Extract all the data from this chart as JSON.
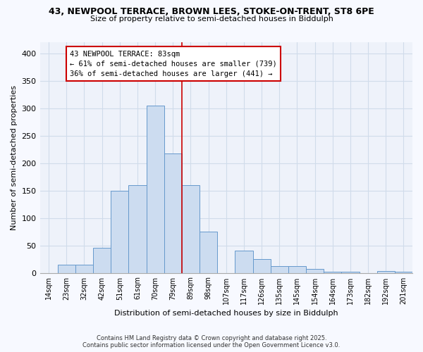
{
  "title_line1": "43, NEWPOOL TERRACE, BROWN LEES, STOKE-ON-TRENT, ST8 6PE",
  "title_line2": "Size of property relative to semi-detached houses in Biddulph",
  "xlabel": "Distribution of semi-detached houses by size in Biddulph",
  "ylabel": "Number of semi-detached properties",
  "bin_labels": [
    "14sqm",
    "23sqm",
    "32sqm",
    "42sqm",
    "51sqm",
    "61sqm",
    "70sqm",
    "79sqm",
    "89sqm",
    "98sqm",
    "107sqm",
    "117sqm",
    "126sqm",
    "135sqm",
    "145sqm",
    "154sqm",
    "164sqm",
    "173sqm",
    "182sqm",
    "192sqm",
    "201sqm"
  ],
  "bar_heights": [
    0,
    15,
    15,
    45,
    150,
    160,
    305,
    217,
    160,
    75,
    0,
    40,
    25,
    12,
    12,
    7,
    2,
    2,
    0,
    3,
    2
  ],
  "bar_color": "#ccdcf0",
  "bar_edge_color": "#6699cc",
  "grid_color": "#d0dcea",
  "background_color": "#f7f9ff",
  "plot_bg_color": "#eef2fa",
  "vline_color": "#cc0000",
  "vline_x_idx": 7,
  "annotation_title": "43 NEWPOOL TERRACE: 83sqm",
  "annotation_line2": "← 61% of semi-detached houses are smaller (739)",
  "annotation_line3": "36% of semi-detached houses are larger (441) →",
  "annotation_box_color": "#ffffff",
  "annotation_box_edge": "#cc0000",
  "ylim": [
    0,
    420
  ],
  "yticks": [
    0,
    50,
    100,
    150,
    200,
    250,
    300,
    350,
    400
  ],
  "footer_line1": "Contains HM Land Registry data © Crown copyright and database right 2025.",
  "footer_line2": "Contains public sector information licensed under the Open Government Licence v3.0."
}
